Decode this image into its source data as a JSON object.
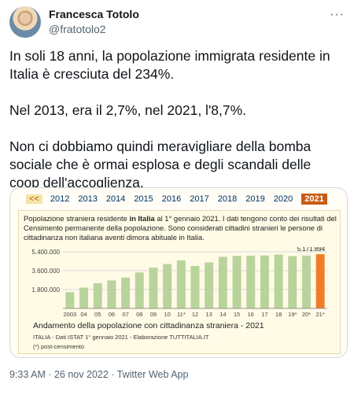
{
  "user": {
    "name": "Francesca Totolo",
    "handle": "@fratotolo2"
  },
  "tweet": {
    "p1": "In soli 18 anni, la popolazione immigrata residente in Italia è cresciuta del 234%.",
    "p2": "Nel 2013, era il 2,7%, nel 2021, l'8,7%.",
    "p3": "Non ci dobbiamo quindi meravigliare della bomba sociale che è ormai esplosa e degli scandali delle coop dell'accoglienza."
  },
  "card": {
    "year_nav": {
      "prev": "<<",
      "years": [
        "2012",
        "2013",
        "2014",
        "2015",
        "2016",
        "2017",
        "2018",
        "2019",
        "2020"
      ],
      "selected": "2021"
    },
    "desc_pre": "Popolazione straniera residente ",
    "desc_bold": "in Italia",
    "desc_post": " al 1° gennaio 2021. I dati tengono conto dei risultati del Censimento permanente della popolazione. Sono considerati cittadini stranieri le persone di cittadinanza non italiana aventi dimora abituale in Italia.",
    "caption": "Andamento della popolazione con cittadinanza straniera - 2021",
    "source": "ITALIA - Dati ISTAT 1° gennaio 2021 - Elaborazione TUTTITALIA.IT",
    "note": "(*) post-censimento"
  },
  "chart_data": {
    "type": "bar",
    "categories": [
      "2003",
      "04",
      "05",
      "06",
      "07",
      "08",
      "09",
      "10",
      "11*",
      "12",
      "13",
      "14",
      "15",
      "16",
      "17",
      "18",
      "19*",
      "20*",
      "21*"
    ],
    "values": [
      1550000,
      1990000,
      2400000,
      2670000,
      2940000,
      3430000,
      3890000,
      4240000,
      4570000,
      4050000,
      4390000,
      4920000,
      5010000,
      5030000,
      5050000,
      5140000,
      4990000,
      5040000,
      5171894
    ],
    "value_label": "5.171.894",
    "yticks": [
      "5.400.000",
      "3.600.000",
      "1.800.000"
    ],
    "ytick_values": [
      5400000,
      3600000,
      1800000
    ],
    "ylim": [
      0,
      5400000
    ],
    "colors": {
      "bar": "#b9d39c",
      "highlight": "#f07d28",
      "grid": "#d8d8d8"
    }
  },
  "meta": "9:33 AM · 26 nov 2022 · Twitter Web App"
}
